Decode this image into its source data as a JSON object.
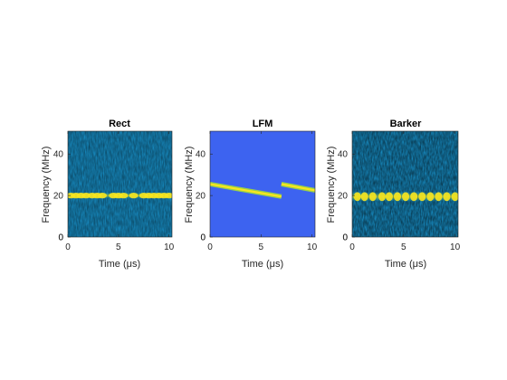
{
  "chart_data": [
    {
      "type": "heatmap",
      "title": "Rect",
      "xlabel": "Time (μs)",
      "ylabel": "Frequency (MHz)",
      "xlim": [
        0,
        10.3
      ],
      "ylim": [
        0,
        51
      ],
      "xticks": [
        0,
        5,
        10
      ],
      "yticks": [
        0,
        20,
        40
      ],
      "band": {
        "kind": "pulsed",
        "freq_mhz": 20,
        "bursts_us": [
          0.3,
          0.8,
          1.3,
          1.8,
          2.4,
          2.9,
          3.4,
          4.5,
          5.0,
          5.5,
          6.5,
          7.5,
          8.0,
          8.5,
          9.0,
          9.5,
          10.0
        ]
      },
      "background": "noise"
    },
    {
      "type": "heatmap",
      "title": "LFM",
      "xlabel": "Time (μs)",
      "ylabel": "Frequency (MHz)",
      "xlim": [
        0,
        10.3
      ],
      "ylim": [
        0,
        51
      ],
      "xticks": [
        0,
        5,
        10
      ],
      "yticks": [
        0,
        20,
        40
      ],
      "band": {
        "kind": "chirp",
        "segments": [
          {
            "t": [
              0,
              7
            ],
            "f": [
              25.5,
              19.5
            ]
          },
          {
            "t": [
              7,
              10.3
            ],
            "f": [
              25.5,
              22.5
            ]
          }
        ]
      },
      "background": "flat"
    },
    {
      "type": "heatmap",
      "title": "Barker",
      "xlabel": "Time (μs)",
      "ylabel": "Frequency (MHz)",
      "xlim": [
        0,
        10.3
      ],
      "ylim": [
        0,
        51
      ],
      "xticks": [
        0,
        5,
        10
      ],
      "yticks": [
        0,
        20,
        40
      ],
      "band": {
        "kind": "wideband",
        "freq_mhz": 19.5,
        "bursts_us": [
          0.5,
          1.2,
          2.0,
          2.9,
          3.6,
          4.4,
          5.2,
          6.0,
          6.8,
          7.6,
          8.4,
          9.2,
          10.0
        ]
      },
      "background": "noise_strong"
    }
  ],
  "colors": {
    "noise_base": "#1a9bd7",
    "flat_base": "#3d63f0",
    "band_peak": "#f8e51f",
    "band_mid": "#9ad04a",
    "axis": "#262626"
  }
}
